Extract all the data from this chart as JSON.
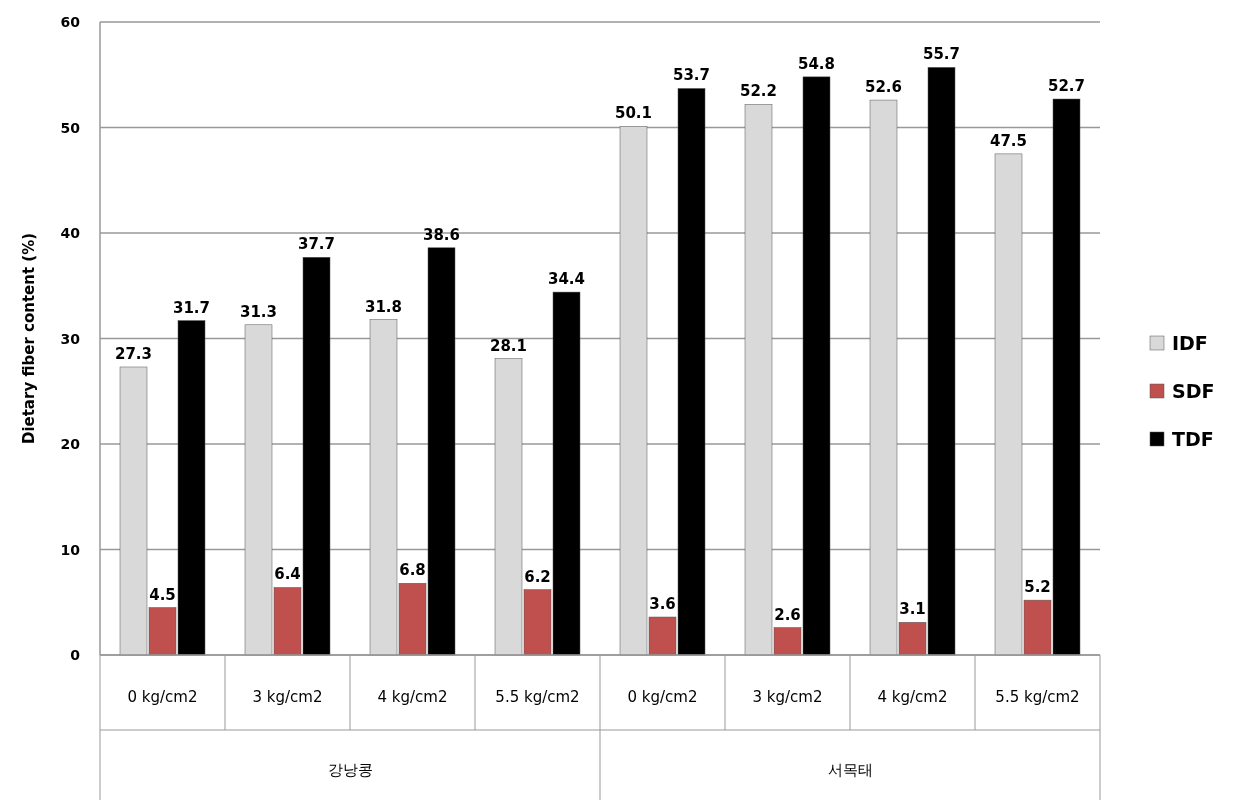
{
  "chart_data": {
    "type": "bar",
    "ylabel": "Dietary fiber content (%)",
    "categories": [
      "0 kg/cm2",
      "3 kg/cm2",
      "4 kg/cm2",
      "5.5 kg/cm2",
      "0 kg/cm2",
      "3 kg/cm2",
      "4 kg/cm2",
      "5.5 kg/cm2"
    ],
    "annotations": [
      "강낭콩",
      "서목태"
    ],
    "series": [
      {
        "name": "IDF",
        "color": "#d9d9d9",
        "values": [
          27.3,
          31.3,
          31.8,
          28.1,
          50.1,
          52.2,
          52.6,
          47.5
        ]
      },
      {
        "name": "SDF",
        "color": "#c0504d",
        "values": [
          4.5,
          6.4,
          6.8,
          6.2,
          3.6,
          2.6,
          3.1,
          5.2
        ]
      },
      {
        "name": "TDF",
        "color": "#000000",
        "values": [
          31.7,
          37.7,
          38.6,
          34.4,
          53.7,
          54.8,
          55.7,
          52.7
        ]
      }
    ],
    "ylim": [
      0,
      60
    ],
    "yticks": [
      0,
      10,
      20,
      30,
      40,
      50,
      60
    ],
    "grid": "y",
    "legend": "right",
    "data_labels": true
  }
}
